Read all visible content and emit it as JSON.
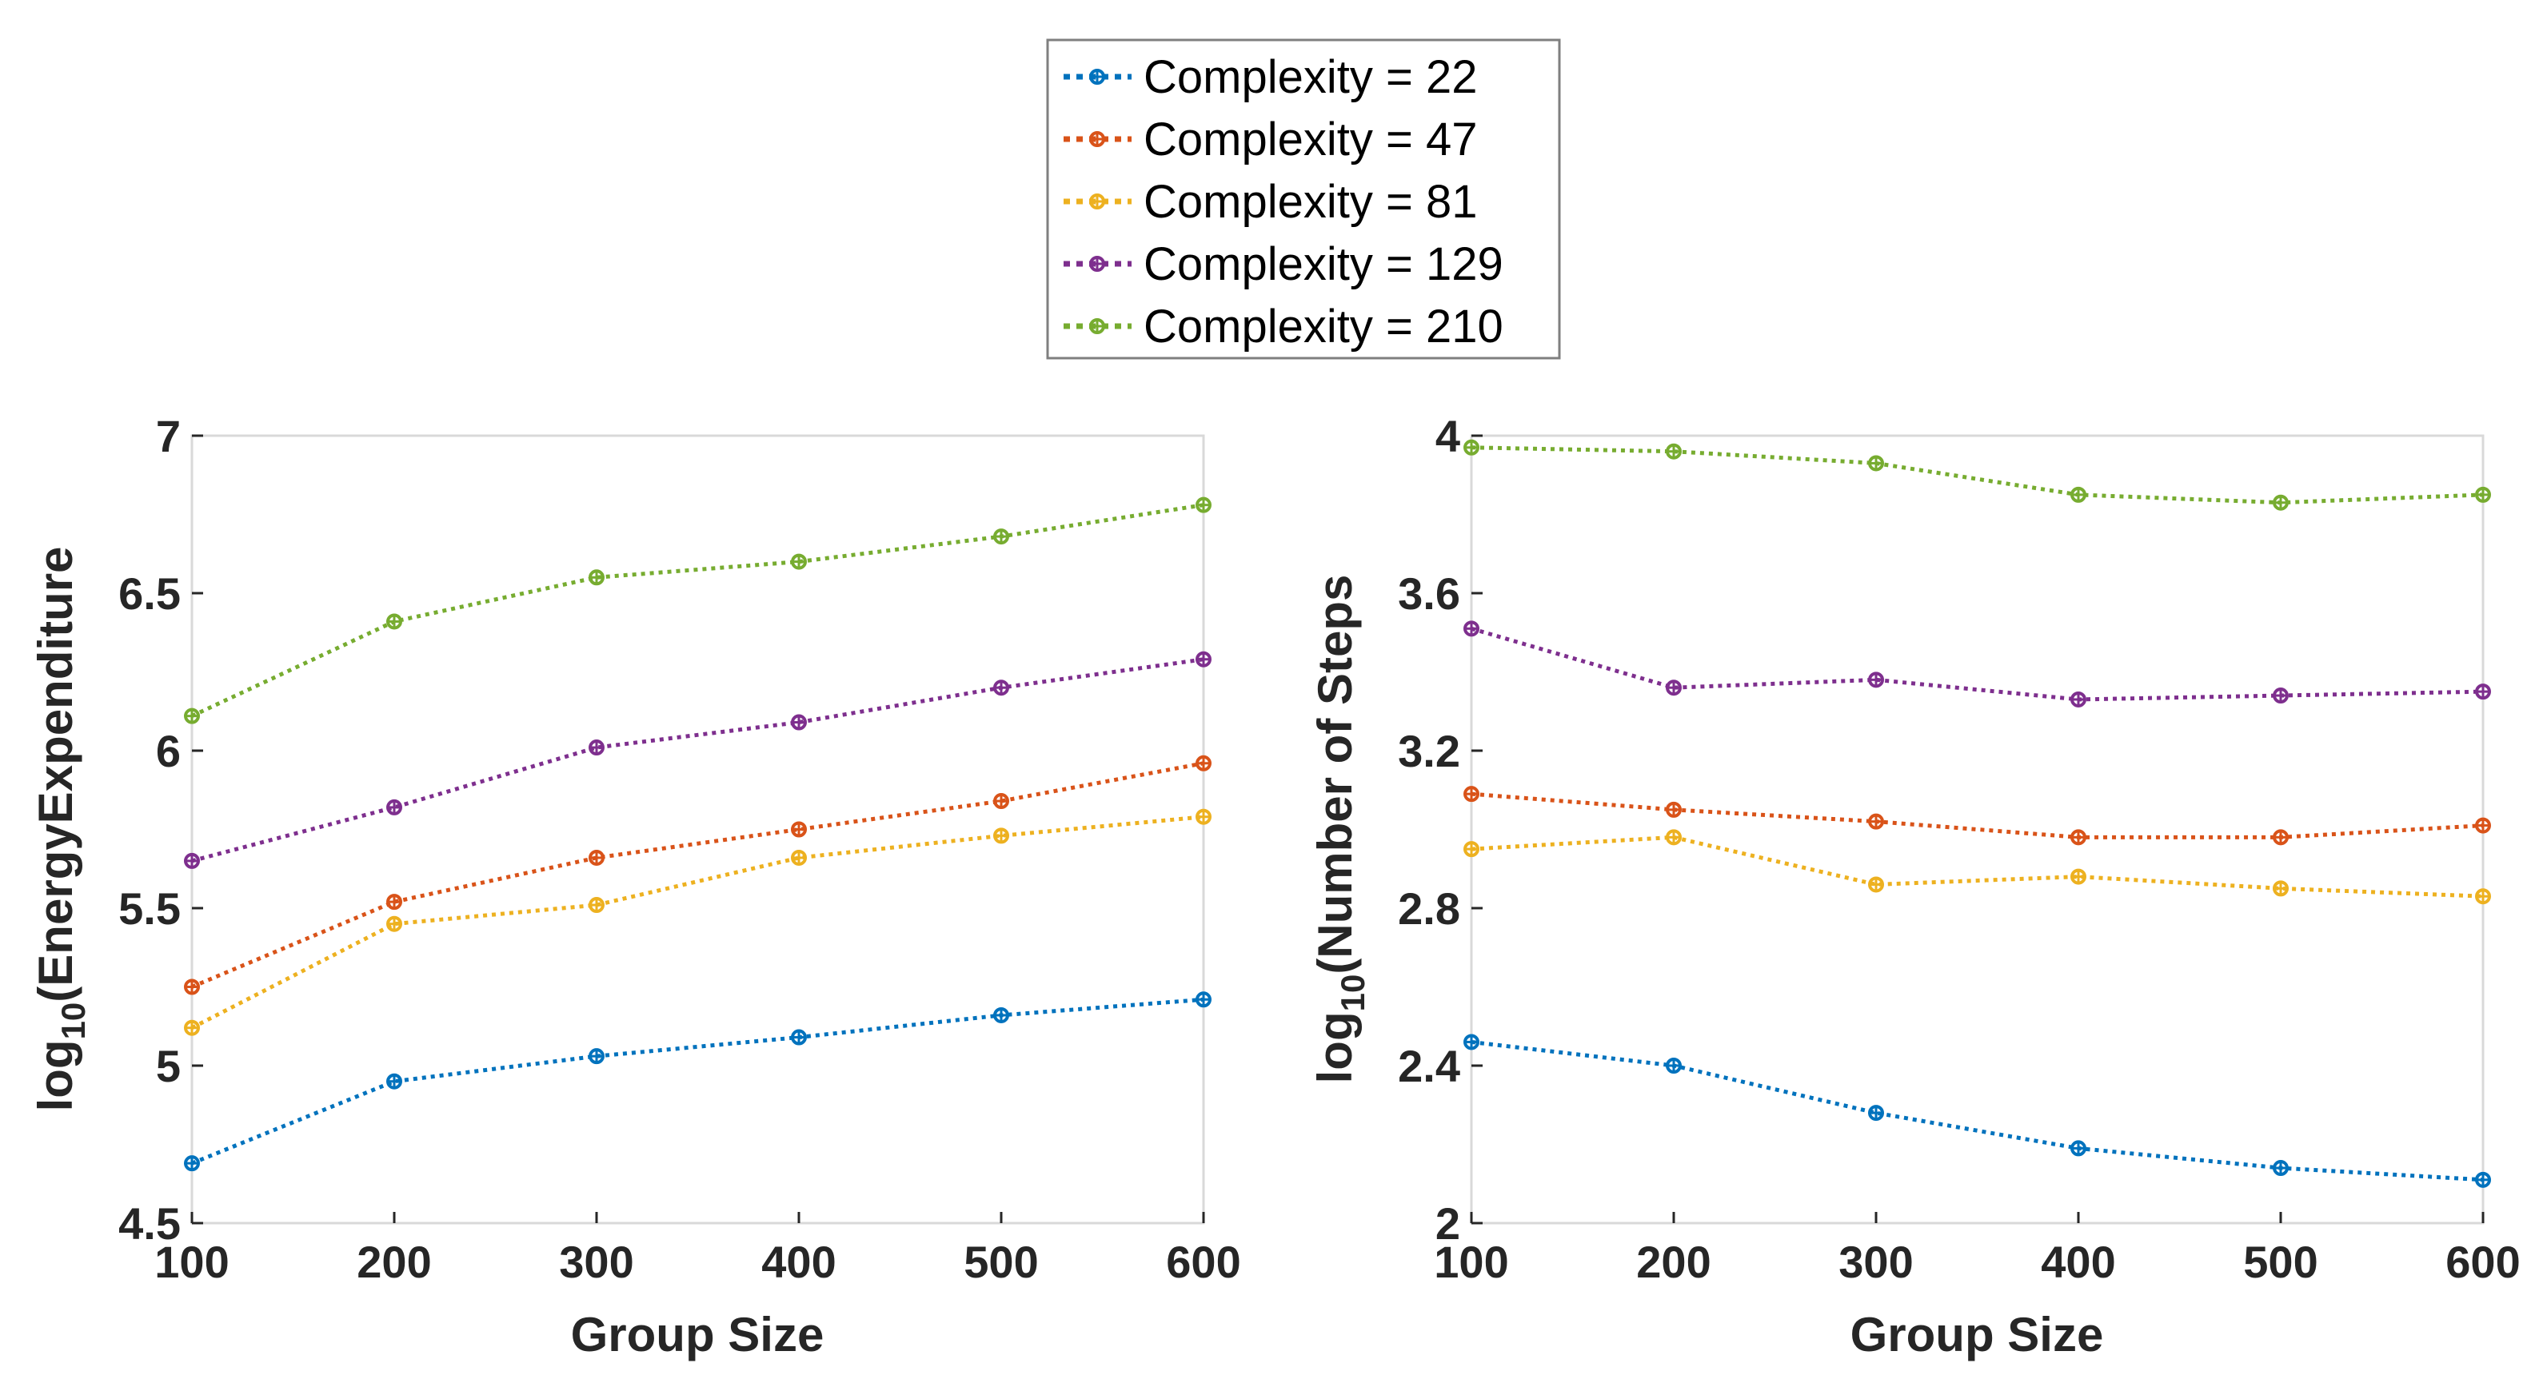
{
  "legend": {
    "entries": [
      {
        "label": "Complexity = 22",
        "color": "#0072BD"
      },
      {
        "label": "Complexity = 47",
        "color": "#D95319"
      },
      {
        "label": "Complexity = 81",
        "color": "#EDB120"
      },
      {
        "label": "Complexity = 129",
        "color": "#7E2F8E"
      },
      {
        "label": "Complexity = 210",
        "color": "#77AC30"
      }
    ]
  },
  "chart_data": [
    {
      "type": "line",
      "title": "",
      "xlabel": "Group Size",
      "ylabel": {
        "prefix": "log",
        "subscript": "10",
        "suffix": "(EnergyExpenditure"
      },
      "x": [
        100,
        200,
        300,
        400,
        500,
        600
      ],
      "xlim": [
        100,
        600
      ],
      "ylim": [
        4.5,
        7
      ],
      "xticks": [
        100,
        200,
        300,
        400,
        500,
        600
      ],
      "yticks": [
        4.5,
        5,
        5.5,
        6,
        6.5,
        7
      ],
      "ytick_labels": [
        "4.5",
        "5",
        "5.5",
        "6",
        "6.5",
        "7"
      ],
      "xtick_labels": [
        "100",
        "200",
        "300",
        "400",
        "500",
        "600"
      ],
      "series": [
        {
          "name": "Complexity = 22",
          "color": "#0072BD",
          "values": [
            4.69,
            4.95,
            5.03,
            5.09,
            5.16,
            5.21
          ]
        },
        {
          "name": "Complexity = 47",
          "color": "#D95319",
          "values": [
            5.25,
            5.52,
            5.66,
            5.75,
            5.84,
            5.96
          ]
        },
        {
          "name": "Complexity = 81",
          "color": "#EDB120",
          "values": [
            5.12,
            5.45,
            5.51,
            5.66,
            5.73,
            5.79
          ]
        },
        {
          "name": "Complexity = 129",
          "color": "#7E2F8E",
          "values": [
            5.65,
            5.82,
            6.01,
            6.09,
            6.2,
            6.29
          ]
        },
        {
          "name": "Complexity = 210",
          "color": "#77AC30",
          "values": [
            6.11,
            6.41,
            6.55,
            6.6,
            6.68,
            6.78
          ]
        }
      ],
      "grid": false
    },
    {
      "type": "line",
      "title": "",
      "xlabel": "Group Size",
      "ylabel": {
        "prefix": "log",
        "subscript": "10",
        "suffix": "(Number of Steps"
      },
      "x": [
        100,
        200,
        300,
        400,
        500,
        600
      ],
      "xlim": [
        100,
        600
      ],
      "ylim": [
        2,
        4
      ],
      "xticks": [
        100,
        200,
        300,
        400,
        500,
        600
      ],
      "yticks": [
        2,
        2.4,
        2.8,
        3.2,
        3.6,
        4
      ],
      "ytick_labels": [
        "2",
        "2.4",
        "2.8",
        "3.2",
        "3.6",
        "4"
      ],
      "xtick_labels": [
        "100",
        "200",
        "300",
        "400",
        "500",
        "600"
      ],
      "series": [
        {
          "name": "Complexity = 22",
          "color": "#0072BD",
          "values": [
            2.46,
            2.4,
            2.28,
            2.19,
            2.14,
            2.11
          ]
        },
        {
          "name": "Complexity = 47",
          "color": "#D95319",
          "values": [
            3.09,
            3.05,
            3.02,
            2.98,
            2.98,
            3.01
          ]
        },
        {
          "name": "Complexity = 81",
          "color": "#EDB120",
          "values": [
            2.95,
            2.98,
            2.86,
            2.88,
            2.85,
            2.83
          ]
        },
        {
          "name": "Complexity = 129",
          "color": "#7E2F8E",
          "values": [
            3.51,
            3.36,
            3.38,
            3.33,
            3.34,
            3.35
          ]
        },
        {
          "name": "Complexity = 210",
          "color": "#77AC30",
          "values": [
            3.97,
            3.96,
            3.93,
            3.85,
            3.83,
            3.85
          ]
        }
      ],
      "grid": false
    }
  ]
}
